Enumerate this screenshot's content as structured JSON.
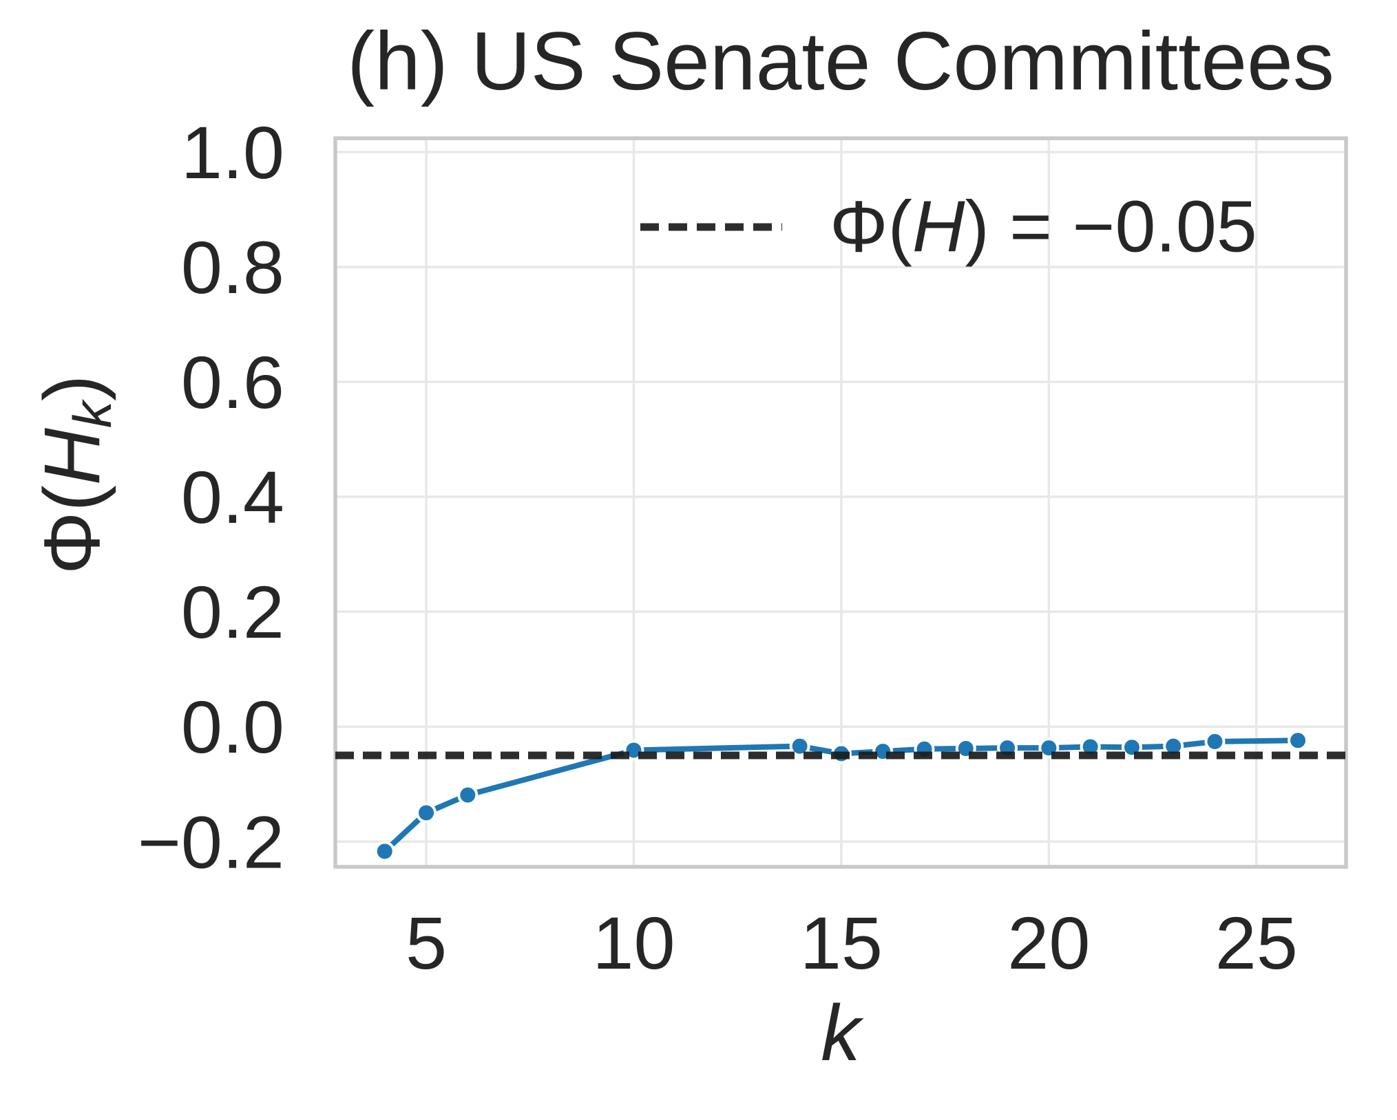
{
  "figure": {
    "title": "(h) US Senate Committees",
    "background": "#ffffff"
  },
  "axes": {
    "xlabel": "k",
    "ylabel_prefix": "Φ(",
    "ylabel_var": "H",
    "ylabel_sub": "k",
    "ylabel_suffix": ")",
    "x_tick_labels": [
      "5",
      "10",
      "15",
      "20",
      "25"
    ],
    "y_tick_labels": [
      "1.0",
      "0.8",
      "0.6",
      "0.4",
      "0.2",
      "0.0",
      "−0.2"
    ]
  },
  "legend": {
    "prefix": "Φ(",
    "var": "H",
    "suffix": ") = −0.05"
  },
  "colors": {
    "series": "#1f77b4",
    "marker_edge": "#ffffff",
    "reference": "#1c1c1c",
    "grid": "#e8e8e8",
    "spine": "#c9c9c9",
    "text": "#262626"
  },
  "chart_data": {
    "type": "line",
    "title": "(h) US Senate Committees",
    "xlabel": "k",
    "ylabel": "Φ(H_k)",
    "x": [
      4,
      5,
      6,
      10,
      14,
      15,
      16,
      17,
      18,
      19,
      20,
      21,
      22,
      23,
      24,
      26
    ],
    "y": [
      -0.217,
      -0.15,
      -0.119,
      -0.041,
      -0.034,
      -0.047,
      -0.043,
      -0.039,
      -0.038,
      -0.037,
      -0.037,
      -0.035,
      -0.036,
      -0.034,
      -0.026,
      -0.024
    ],
    "series_name": "Φ(H_k)",
    "line_style": "solid",
    "marker": "o",
    "reference_line": {
      "label": "Φ(H) = −0.05",
      "value": -0.05,
      "style": "dashed"
    },
    "x_ticks": [
      5,
      10,
      15,
      20,
      25
    ],
    "y_ticks": [
      1.0,
      0.8,
      0.6,
      0.4,
      0.2,
      0.0,
      -0.2
    ],
    "xlim": [
      2.81,
      27.16
    ],
    "ylim": [
      -0.244,
      1.024
    ],
    "grid": true,
    "legend_position": "upper right"
  }
}
